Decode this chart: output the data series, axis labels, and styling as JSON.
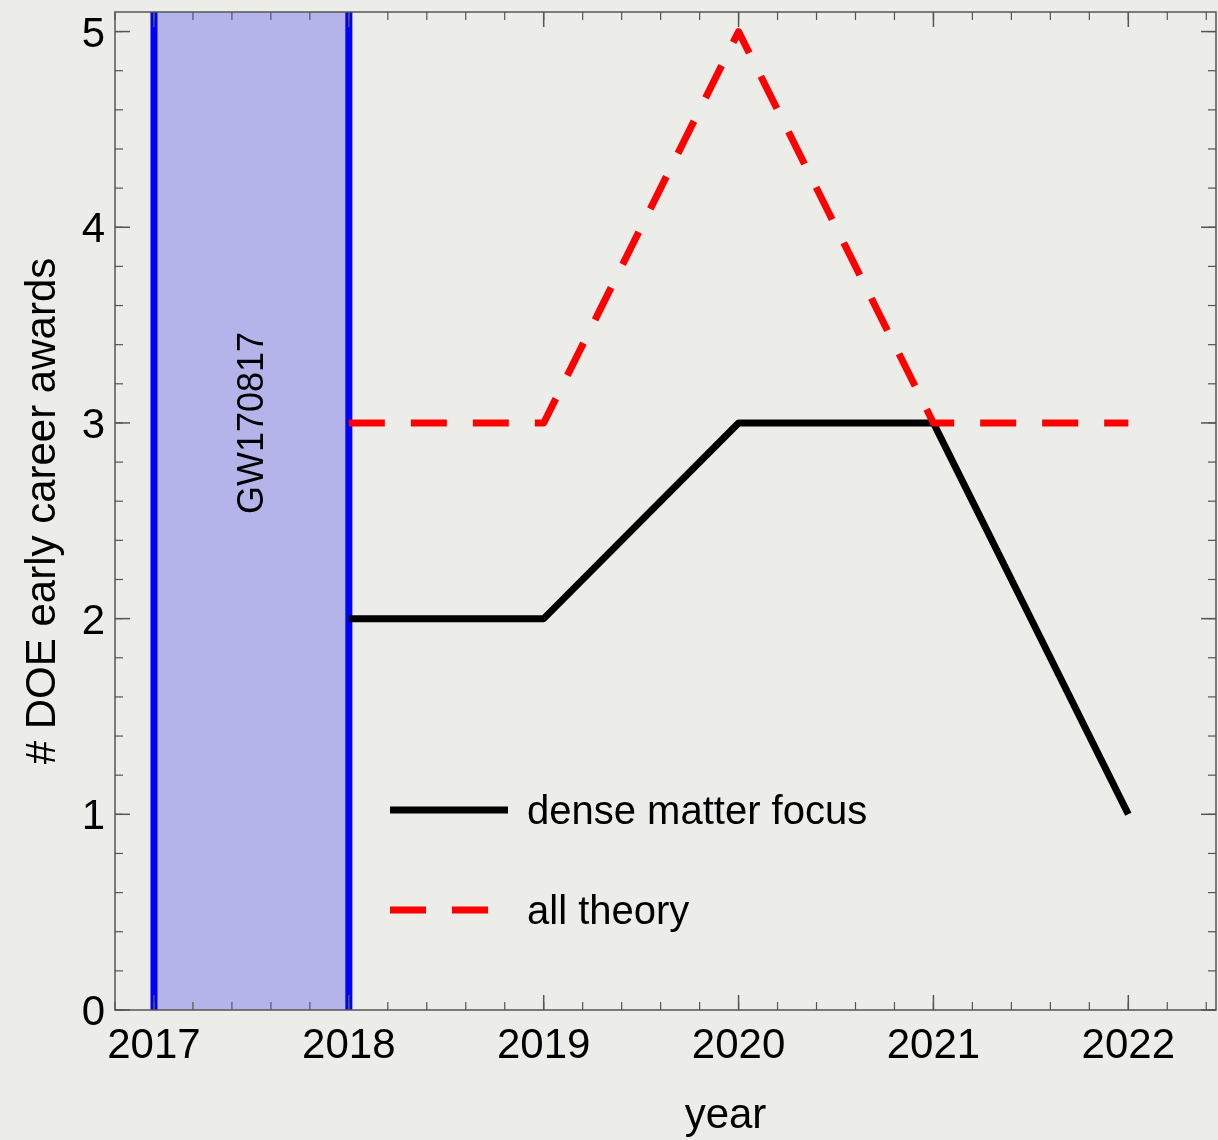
{
  "chart_data": {
    "type": "line",
    "xlabel": "year",
    "ylabel": "# DOE early career awards",
    "x": [
      2018,
      2019,
      2020,
      2021,
      2022
    ],
    "series": [
      {
        "name": "dense matter focus",
        "color": "#000000",
        "values": [
          2,
          2,
          3,
          3,
          1
        ],
        "line_style": "solid"
      },
      {
        "name": "all theory",
        "color": "#ff0000",
        "values": [
          3,
          3,
          5,
          3,
          3
        ],
        "line_style": "dashed"
      }
    ],
    "xlim": [
      2016.8,
      2022.45
    ],
    "xticks": [
      2017,
      2018,
      2019,
      2020,
      2021,
      2022
    ],
    "ylim": [
      0,
      5.1
    ],
    "yticks": [
      0,
      1,
      2,
      3,
      4,
      5
    ],
    "bands": [
      {
        "axis": "x",
        "from": 2017,
        "to": 2018,
        "label": "GW170817",
        "color": "#b4b4ea"
      }
    ],
    "ref_lines": [
      {
        "axis": "x",
        "value": 2017,
        "color": "#0000ff"
      },
      {
        "axis": "x",
        "value": 2018,
        "color": "#0000ff"
      }
    ],
    "grid": false,
    "legend": "bottom",
    "marker": "none"
  }
}
